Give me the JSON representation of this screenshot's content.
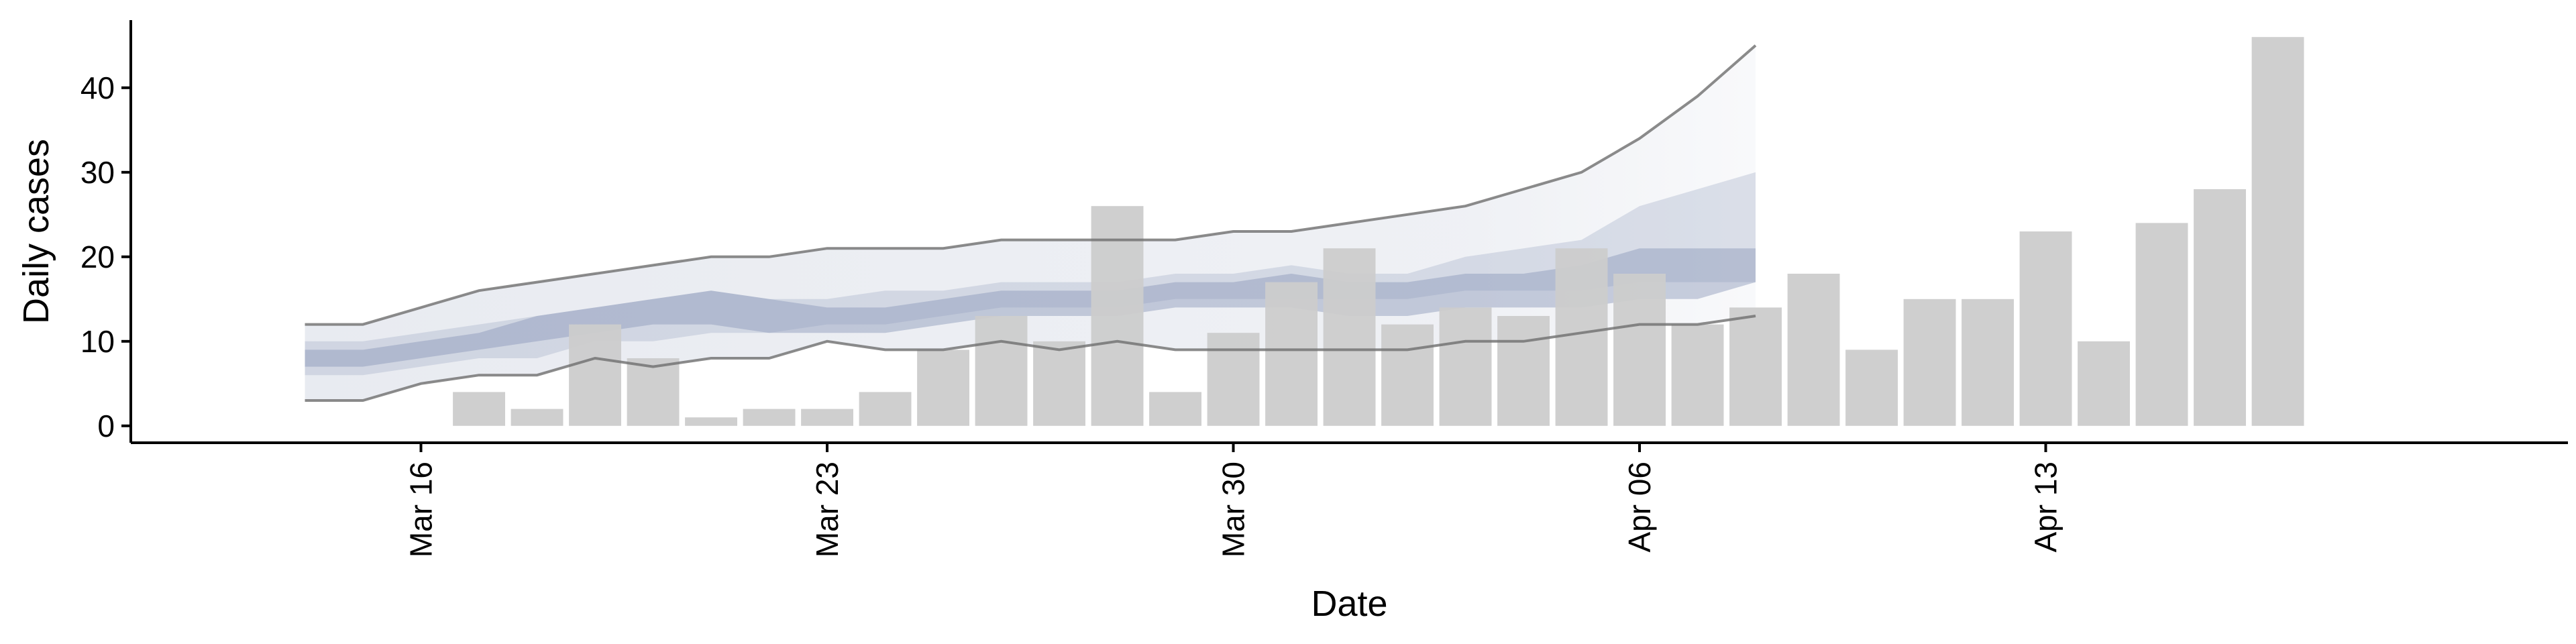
{
  "chart_data": {
    "type": "bar",
    "title": "",
    "xlabel": "Date",
    "ylabel": "Daily cases",
    "ylim": [
      -2,
      48
    ],
    "xlim": [
      "2020-03-11",
      "2020-04-22"
    ],
    "y_ticks": [
      0,
      10,
      20,
      30,
      40
    ],
    "x_ticks": [
      {
        "date": "2020-03-16",
        "label": "Mar 16"
      },
      {
        "date": "2020-03-23",
        "label": "Mar 23"
      },
      {
        "date": "2020-03-30",
        "label": "Mar 30"
      },
      {
        "date": "2020-04-06",
        "label": "Apr 06"
      },
      {
        "date": "2020-04-13",
        "label": "Apr 13"
      }
    ],
    "grid": false,
    "bars": {
      "color": "#cccccc",
      "dates": [
        "2020-03-17",
        "2020-03-18",
        "2020-03-19",
        "2020-03-20",
        "2020-03-21",
        "2020-03-22",
        "2020-03-23",
        "2020-03-24",
        "2020-03-25",
        "2020-03-26",
        "2020-03-27",
        "2020-03-28",
        "2020-03-29",
        "2020-03-30",
        "2020-03-31",
        "2020-04-01",
        "2020-04-02",
        "2020-04-03",
        "2020-04-04",
        "2020-04-05",
        "2020-04-06",
        "2020-04-07",
        "2020-04-08",
        "2020-04-09",
        "2020-04-10",
        "2020-04-11",
        "2020-04-12",
        "2020-04-13",
        "2020-04-14",
        "2020-04-15",
        "2020-04-16",
        "2020-04-17"
      ],
      "values": [
        4,
        2,
        12,
        8,
        1,
        2,
        2,
        4,
        9,
        13,
        10,
        26,
        4,
        11,
        17,
        21,
        12,
        14,
        13,
        21,
        18,
        12,
        14,
        18,
        9,
        15,
        15,
        23,
        10,
        24,
        28,
        46
      ]
    },
    "forecast": {
      "dates": [
        "2020-03-14",
        "2020-03-15",
        "2020-03-16",
        "2020-03-17",
        "2020-03-18",
        "2020-03-19",
        "2020-03-20",
        "2020-03-21",
        "2020-03-22",
        "2020-03-23",
        "2020-03-24",
        "2020-03-25",
        "2020-03-26",
        "2020-03-27",
        "2020-03-28",
        "2020-03-29",
        "2020-03-30",
        "2020-03-31",
        "2020-04-01",
        "2020-04-02",
        "2020-04-03",
        "2020-04-04",
        "2020-04-05",
        "2020-04-06",
        "2020-04-07",
        "2020-04-08"
      ],
      "outer_lower": [
        3,
        3,
        5,
        6,
        6,
        8,
        7,
        8,
        8,
        10,
        9,
        9,
        10,
        9,
        10,
        9,
        9,
        9,
        9,
        9,
        10,
        10,
        11,
        12,
        12,
        13
      ],
      "outer_upper": [
        12,
        12,
        14,
        16,
        17,
        18,
        19,
        20,
        20,
        21,
        21,
        21,
        22,
        22,
        22,
        22,
        23,
        23,
        24,
        25,
        26,
        28,
        30,
        34,
        39,
        45
      ],
      "mid_lower": [
        6,
        6,
        7,
        8,
        8,
        10,
        10,
        11,
        11,
        12,
        12,
        13,
        14,
        14,
        14,
        15,
        15,
        15,
        15,
        15,
        16,
        16,
        16,
        17,
        17,
        17
      ],
      "mid_upper": [
        10,
        10,
        11,
        12,
        13,
        14,
        15,
        16,
        15,
        15,
        16,
        16,
        17,
        17,
        17,
        18,
        18,
        19,
        18,
        18,
        20,
        21,
        22,
        26,
        28,
        30
      ],
      "inner_lower": [
        7,
        7,
        8,
        9,
        10,
        11,
        12,
        12,
        11,
        11,
        11,
        12,
        13,
        13,
        13,
        14,
        14,
        14,
        13,
        13,
        14,
        14,
        14,
        15,
        15,
        17
      ],
      "inner_upper": [
        9,
        9,
        10,
        11,
        13,
        14,
        15,
        16,
        15,
        14,
        14,
        15,
        16,
        16,
        16,
        17,
        17,
        18,
        17,
        17,
        18,
        18,
        19,
        21,
        21,
        21
      ],
      "colors": {
        "outer": "#c9cfdd",
        "mid": "#a8b2cb",
        "inner": "#8996b8",
        "outer_line": "#6e6e6e"
      }
    }
  }
}
